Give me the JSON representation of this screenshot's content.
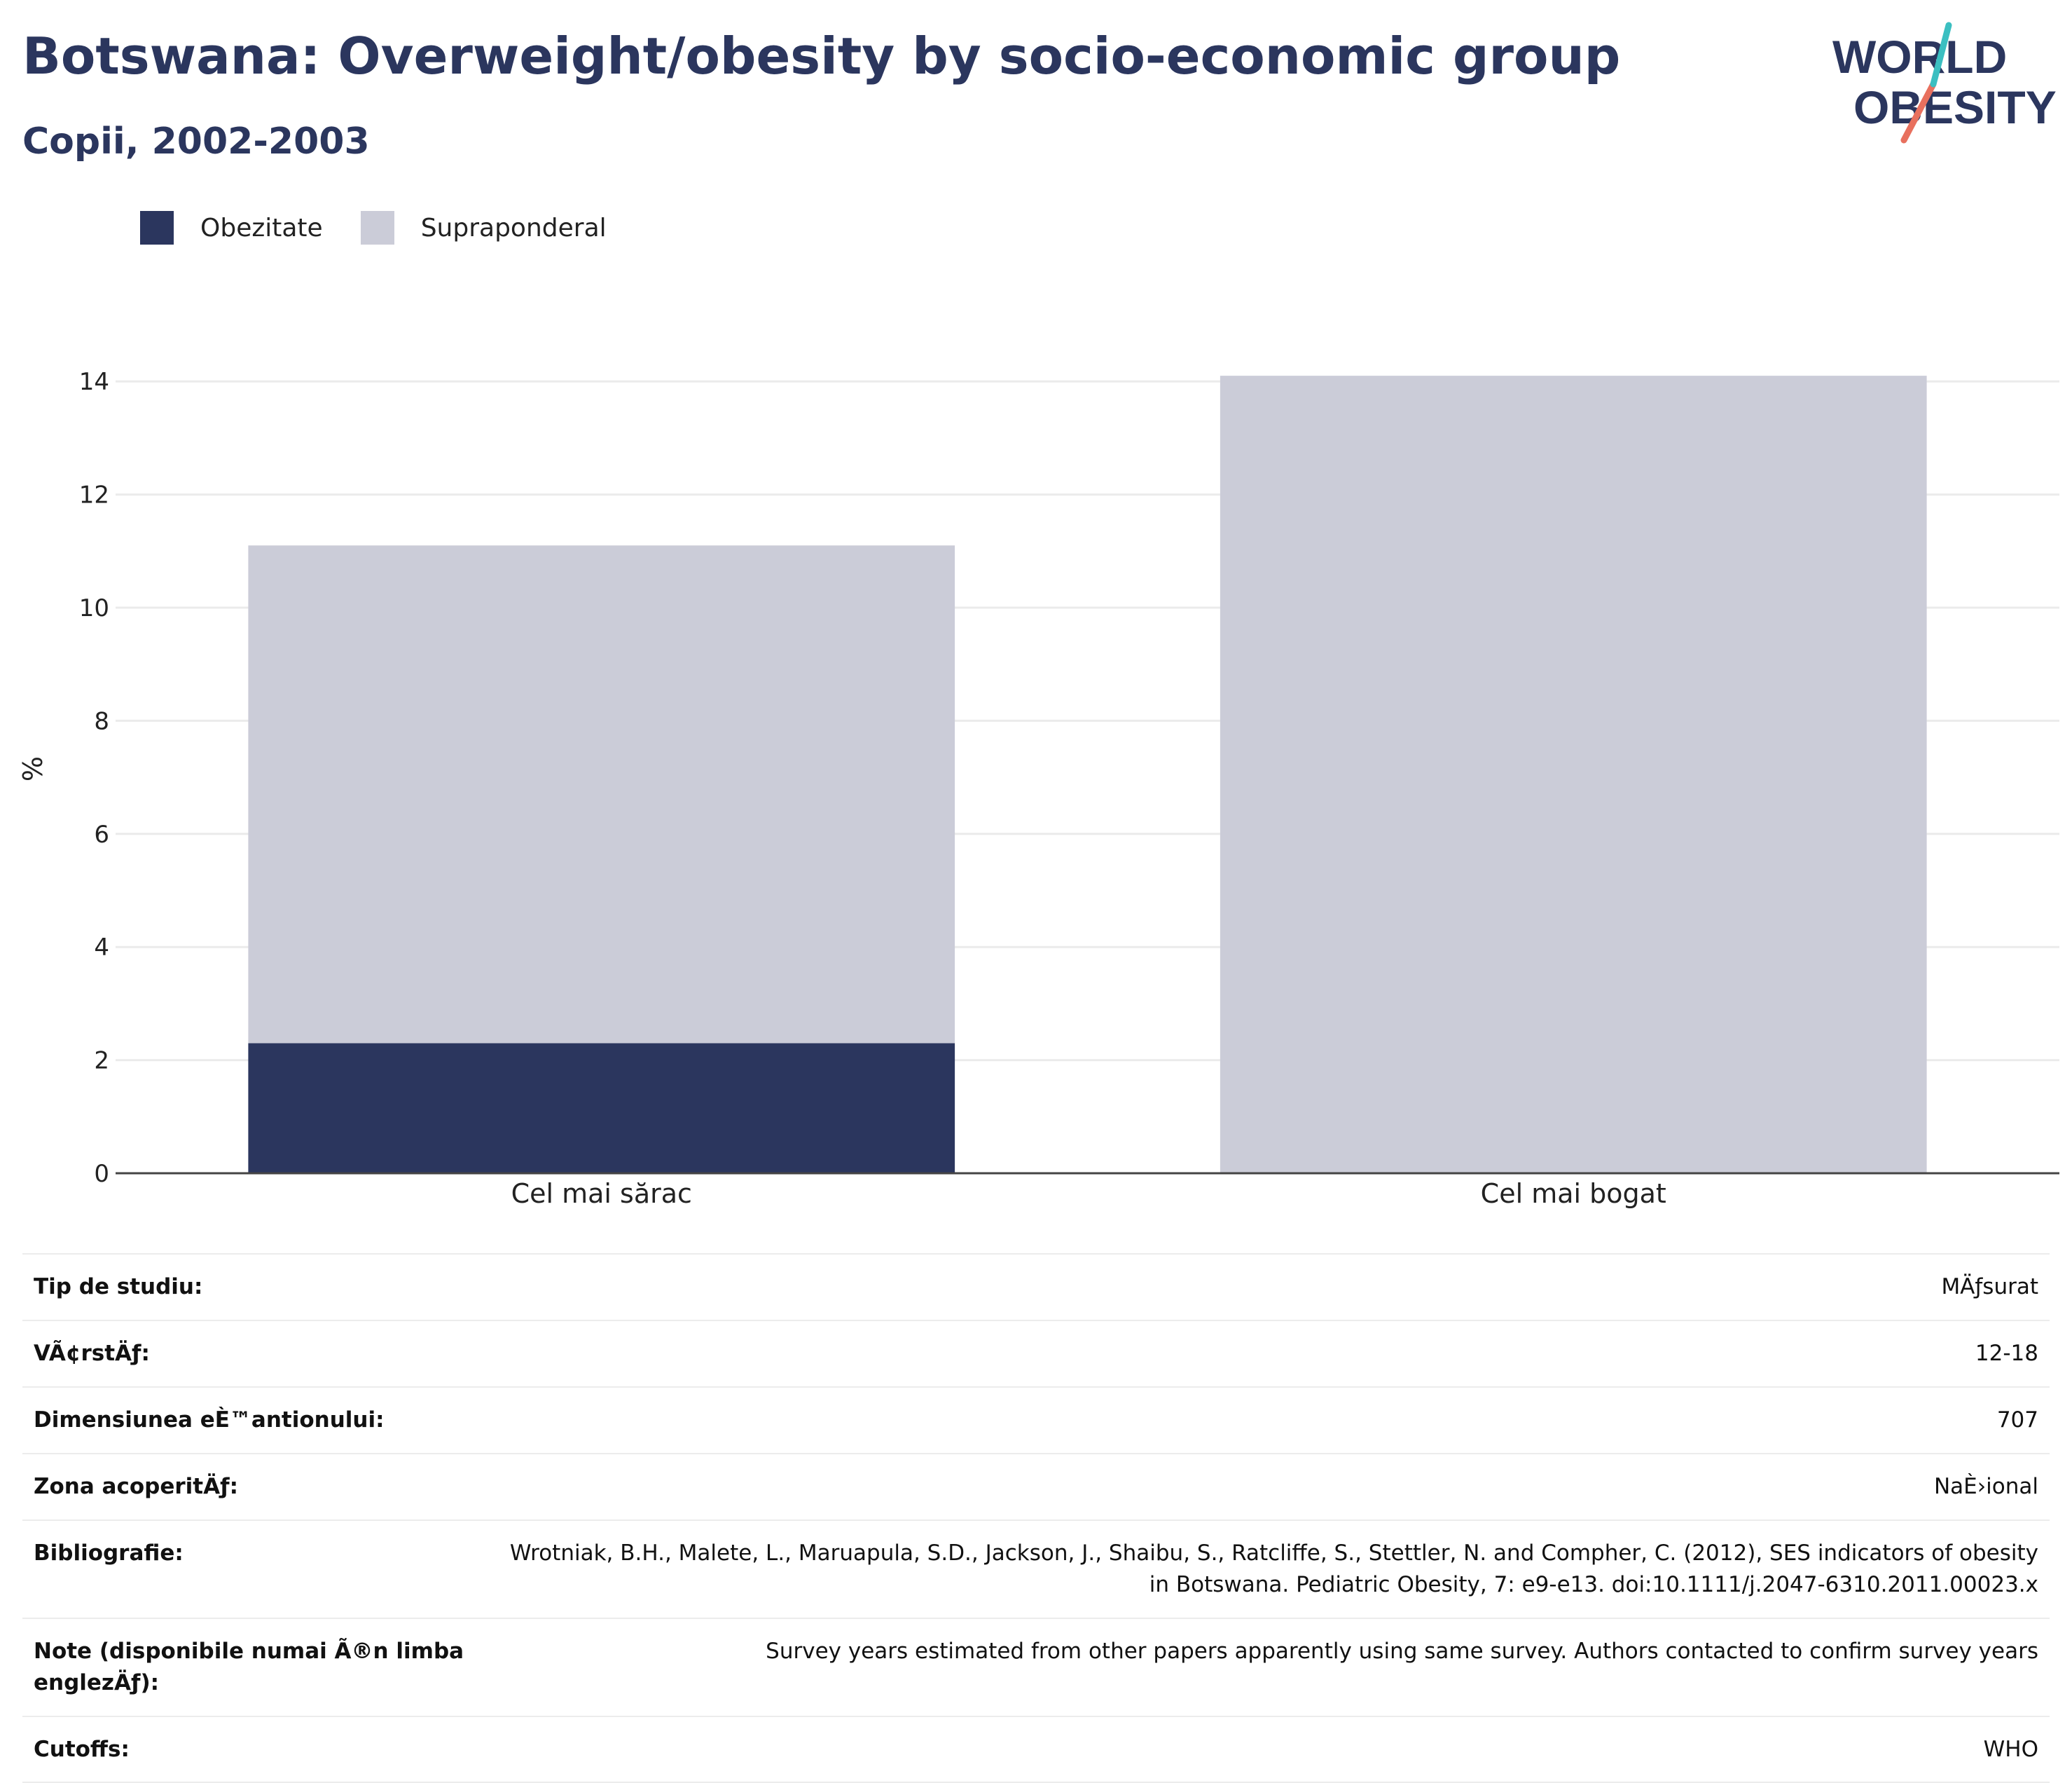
{
  "title": "Botswana: Overweight/obesity by socio-economic group",
  "subtitle": "Copii, 2002-2003",
  "logo": {
    "line1": "WORLD",
    "line2": "OBESITY"
  },
  "colors": {
    "title": "#2b365e",
    "obezitate": "#2b365e",
    "supraponderal": "#cbccd8",
    "gridline": "#ebebeb",
    "axis": "#444444",
    "logo_text": "#2b365e",
    "logo_teal": "#3bbfc1",
    "logo_coral": "#e8705e"
  },
  "chart_data": {
    "type": "bar",
    "stacked": true,
    "categories": [
      "Cel mai sărac",
      "Cel mai bogat"
    ],
    "series": [
      {
        "name": "Obezitate",
        "values": [
          2.3,
          0
        ],
        "color": "#2b365e"
      },
      {
        "name": "Supraponderal",
        "values": [
          8.8,
          14.1
        ],
        "color": "#cbccd8"
      }
    ],
    "ylabel": "%",
    "ylim": [
      0,
      14.3
    ],
    "yticks": [
      0,
      2,
      4,
      6,
      8,
      10,
      12,
      14
    ],
    "grid": true,
    "legend_position": "top-left"
  },
  "table": [
    {
      "label": "Tip de studiu:",
      "value": "MÄƒsurat"
    },
    {
      "label": "VÃ¢rstÄƒ:",
      "value": "12-18"
    },
    {
      "label": "Dimensiunea eÈ™antionului:",
      "value": "707"
    },
    {
      "label": "Zona acoperitÄƒ:",
      "value": "NaÈ›ional"
    },
    {
      "label": "Bibliografie:",
      "value": "Wrotniak, B.H., Malete, L., Maruapula, S.D., Jackson, J., Shaibu, S., Ratcliffe, S., Stettler, N. and Compher, C. (2012), SES indicators of obesity in Botswana. Pediatric Obesity, 7: e9-e13. doi:10.1111/j.2047-6310.2011.00023.x"
    },
    {
      "label": "Note (disponibile numai Ã®n limba englezÄƒ):",
      "value": "Survey years estimated from other papers apparently using same survey. Authors contacted to confirm survey years"
    },
    {
      "label": "Cutoffs:",
      "value": "WHO"
    }
  ]
}
